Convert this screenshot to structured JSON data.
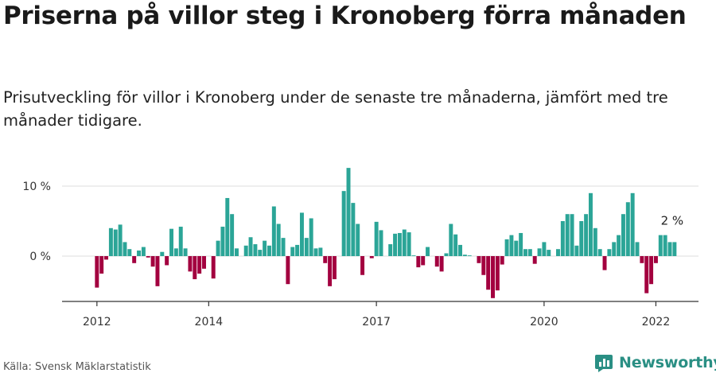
{
  "header": {
    "title": "Priserna på villor steg i Kronoberg förra månaden",
    "subtitle": "Prisutveckling för villor i Kronoberg under de senaste tre månaderna, jämfört med tre månader tidigare."
  },
  "footer": {
    "source": "Källa: Svensk Mäklarstatistik",
    "brand": "Newsworthy"
  },
  "colors": {
    "positive": "#2ba597",
    "negative": "#a3003f",
    "axis": "#333333",
    "grid": "#dddddd",
    "brand": "#2a8f84"
  },
  "chart_data": {
    "type": "bar",
    "title": "Priserna på villor steg i Kronoberg förra månaden",
    "xlabel": "",
    "ylabel": "",
    "unit": "%",
    "ylim": [
      -6.5,
      13
    ],
    "yticks": [
      {
        "value": 0,
        "label": "0 %"
      },
      {
        "value": 10,
        "label": "10 %"
      }
    ],
    "xticks": [
      {
        "month": "2012-01",
        "label": "2012"
      },
      {
        "month": "2014-01",
        "label": "2014"
      },
      {
        "month": "2017-01",
        "label": "2017"
      },
      {
        "month": "2020-01",
        "label": "2020"
      },
      {
        "month": "2022-01",
        "label": "2022"
      }
    ],
    "start_month": "2011-12",
    "grid": true,
    "legend": "none",
    "annotation": {
      "label": "2 %",
      "target": "last"
    },
    "series": [
      {
        "name": "Prisutveckling",
        "values": [
          0,
          -4.5,
          -2.5,
          -0.5,
          4,
          3.8,
          4.5,
          2,
          1,
          -1,
          0.8,
          1.3,
          -0.2,
          -1.5,
          -4.3,
          0.6,
          -1.3,
          3.9,
          1.1,
          4.2,
          1.1,
          -2.2,
          -3.3,
          -2.5,
          -1.8,
          0,
          -3.2,
          2.2,
          4.2,
          8.3,
          6,
          1.1,
          0,
          1.5,
          2.7,
          1.7,
          0.9,
          2.2,
          1.5,
          7.1,
          4.6,
          2.6,
          -4,
          1.3,
          1.6,
          6.2,
          2.6,
          5.4,
          1.1,
          1.2,
          -1,
          -4.3,
          -3.3,
          0,
          9.3,
          12.6,
          7.6,
          4.6,
          -2.7,
          0,
          -0.3,
          4.9,
          3.7,
          0,
          1.7,
          3.2,
          3.3,
          3.8,
          3.4,
          0.1,
          -1.6,
          -1.3,
          1.3,
          0,
          -1.5,
          -2.2,
          0.4,
          4.6,
          3.1,
          1.6,
          0.2,
          0.1,
          0,
          -1,
          -2.7,
          -4.8,
          -6,
          -4.9,
          -1.2,
          2.4,
          3,
          2.2,
          3.3,
          1,
          1,
          -1.1,
          1.1,
          2,
          0.9,
          0,
          1,
          5,
          6,
          6,
          1.5,
          5,
          6,
          9,
          4,
          1,
          -2,
          1,
          2,
          3,
          6,
          7.7,
          9,
          2,
          -1,
          -5.3,
          -4,
          -1,
          3,
          3,
          2,
          2
        ]
      }
    ]
  }
}
